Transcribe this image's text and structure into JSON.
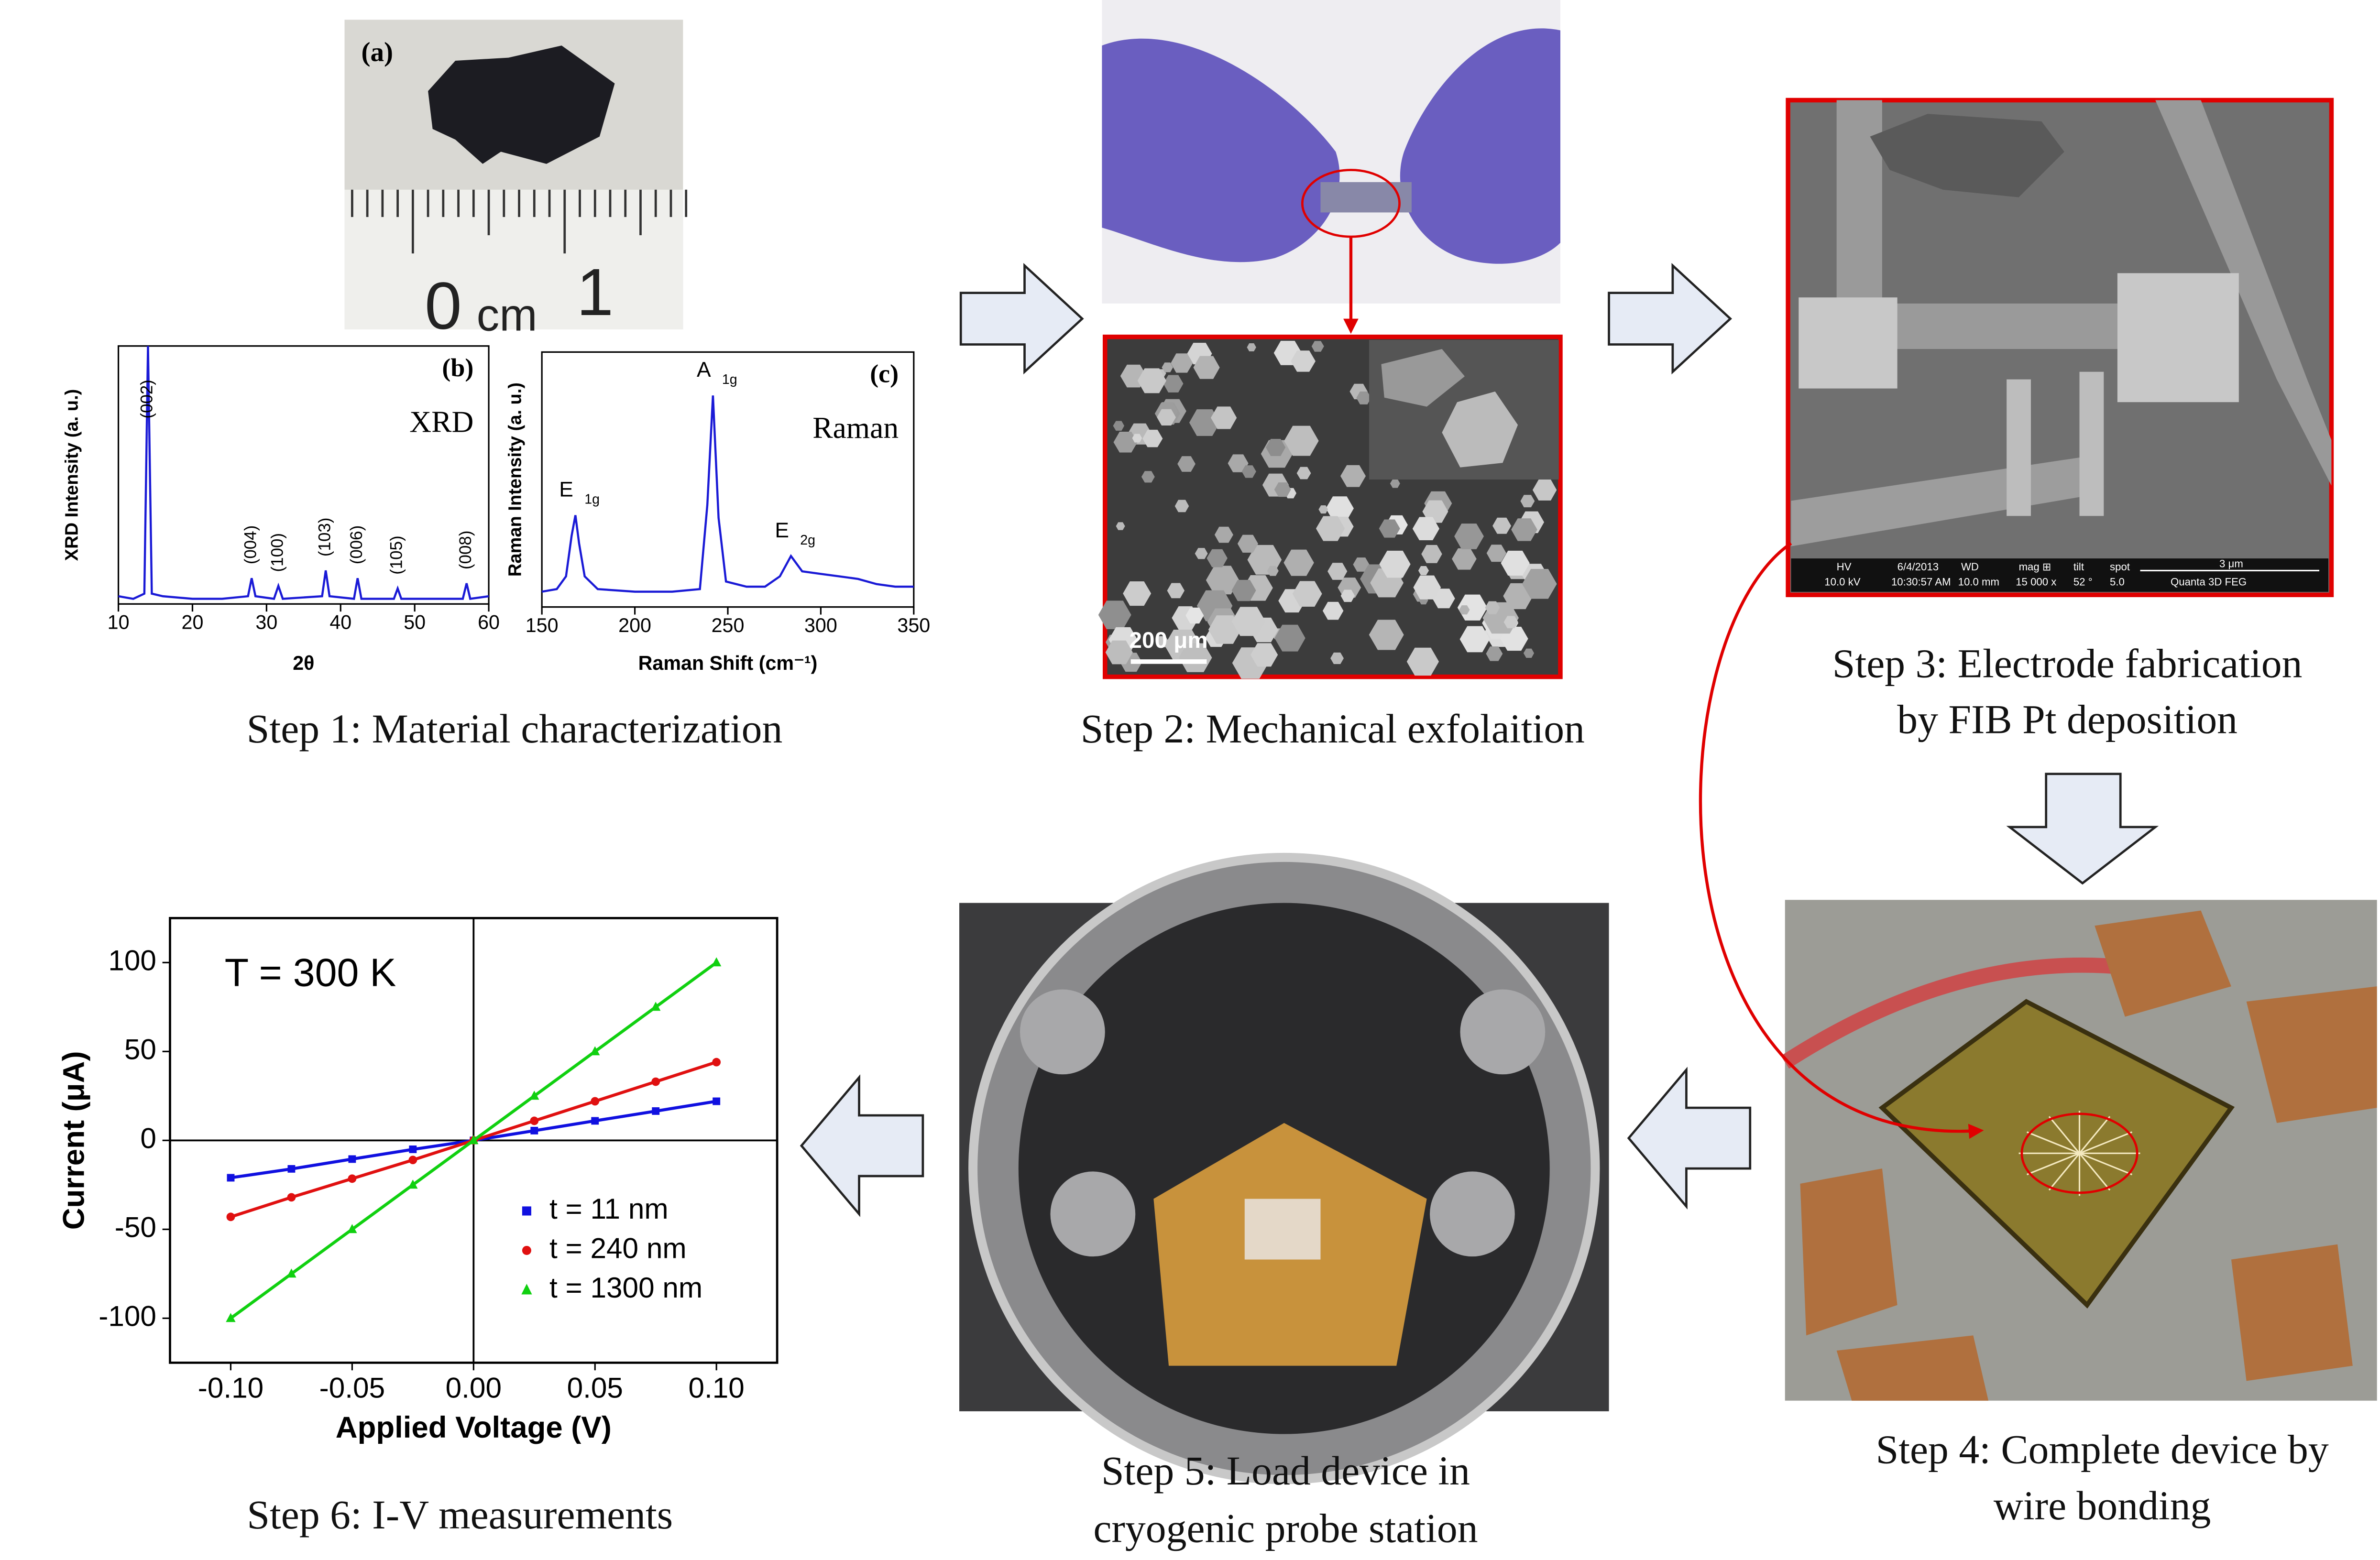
{
  "steps": [
    {
      "caption": [
        "Step 1: Material characterization"
      ]
    },
    {
      "caption": [
        "Step 2: Mechanical exfolaition"
      ]
    },
    {
      "caption": [
        "Step 3: Electrode fabrication",
        "by FIB Pt deposition"
      ]
    },
    {
      "caption": [
        "Step 4: Complete device by",
        "wire bonding"
      ]
    },
    {
      "caption": [
        "Step 5: Load device in",
        "cryogenic probe station"
      ]
    },
    {
      "caption": [
        "Step 6: I-V measurements"
      ]
    }
  ],
  "photo_a": {
    "label": "(a)",
    "ruler": [
      "0",
      "cm",
      "1"
    ]
  },
  "sem_exfoliation": {
    "scale_bar": "200 μm"
  },
  "sem_device": {
    "databar_top": [
      "HV",
      "6/4/2013",
      "WD",
      "mag ⊞",
      "tilt",
      "spot"
    ],
    "databar_bottom": [
      "10.0 kV",
      "10:30:57 AM",
      "10.0 mm",
      "15 000 x",
      "52 °",
      "5.0",
      "Quanta 3D FEG"
    ],
    "scale": "3 μm"
  },
  "chart_data": [
    {
      "type": "line",
      "panel_label": "(b)",
      "title": "XRD",
      "xlabel": "2θ",
      "ylabel": "XRD Intensity (a. u.)",
      "xlim": [
        10,
        60
      ],
      "xticks": [
        10,
        20,
        30,
        40,
        50,
        60
      ],
      "ylim": [
        0,
        100
      ],
      "x": [
        10,
        12,
        13.5,
        14,
        14.5,
        16,
        20,
        24,
        27.5,
        28,
        28.5,
        31,
        31.6,
        32.2,
        37.5,
        38,
        38.5,
        41.8,
        42.3,
        42.8,
        47.2,
        47.7,
        48.2,
        56.5,
        57,
        57.5,
        60
      ],
      "series": [
        {
          "color": "#1a1ad6",
          "values": [
            3,
            2,
            4,
            100,
            4,
            3,
            2,
            2,
            3,
            10,
            3,
            2,
            7,
            2,
            3,
            13,
            3,
            2,
            10,
            2,
            2,
            6,
            2,
            2,
            8,
            2,
            3
          ]
        }
      ],
      "peaks": [
        {
          "label": "(002)",
          "x": 14
        },
        {
          "label": "(004)",
          "x": 28
        },
        {
          "label": "(100)",
          "x": 31.6
        },
        {
          "label": "(103)",
          "x": 38
        },
        {
          "label": "(006)",
          "x": 42.3
        },
        {
          "label": "(105)",
          "x": 47.7
        },
        {
          "label": "(008)",
          "x": 57
        }
      ]
    },
    {
      "type": "line",
      "panel_label": "(c)",
      "title": "Raman",
      "xlabel": "Raman Shift (cm⁻¹)",
      "ylabel": "Raman Intensity (a. u.)",
      "xlim": [
        150,
        350
      ],
      "xticks": [
        150,
        200,
        250,
        300,
        350
      ],
      "ylim": [
        0,
        100
      ],
      "x": [
        150,
        158,
        163,
        166,
        168,
        170,
        173,
        180,
        200,
        220,
        235,
        239,
        242,
        245,
        249,
        260,
        270,
        278,
        284,
        290,
        300,
        310,
        320,
        330,
        340,
        350
      ],
      "series": [
        {
          "color": "#1a1ad6",
          "values": [
            6,
            7,
            12,
            28,
            36,
            25,
            12,
            7,
            6,
            6,
            7,
            40,
            83,
            35,
            10,
            8,
            8,
            12,
            20,
            14,
            13,
            12,
            11,
            9,
            8,
            8
          ]
        }
      ],
      "peaks": [
        {
          "label": "E",
          "sub": "1g",
          "x": 168
        },
        {
          "label": "A",
          "sub": "1g",
          "x": 242
        },
        {
          "label": "E",
          "sub": "2g",
          "x": 284
        }
      ]
    },
    {
      "type": "line",
      "annotation": "T = 300 K",
      "xlabel": "Applied Voltage (V)",
      "ylabel": "Current (μA)",
      "xlim": [
        -0.125,
        0.125
      ],
      "xticks": [
        {
          "value": -0.1,
          "label": "-0.10"
        },
        {
          "value": -0.05,
          "label": "-0.05"
        },
        {
          "value": 0,
          "label": "0.00"
        },
        {
          "value": 0.05,
          "label": "0.05"
        },
        {
          "value": 0.1,
          "label": "0.10"
        }
      ],
      "ylim": [
        -125,
        125
      ],
      "yticks": [
        -100,
        -50,
        0,
        50,
        100
      ],
      "legend": "lower right",
      "x": [
        -0.1,
        -0.075,
        -0.05,
        -0.025,
        0,
        0.025,
        0.05,
        0.075,
        0.1
      ],
      "series": [
        {
          "name": "t = 11 nm",
          "color": "#1010e0",
          "marker": "square",
          "values": [
            -21,
            -16,
            -10.5,
            -5,
            0,
            5.5,
            11,
            16.5,
            22
          ]
        },
        {
          "name": "t = 240 nm",
          "color": "#e01010",
          "marker": "circle",
          "values": [
            -43,
            -32,
            -21.5,
            -11,
            0,
            11,
            22,
            33,
            44
          ]
        },
        {
          "name": "t = 1300 nm",
          "color": "#10d010",
          "marker": "triangle",
          "values": [
            -100,
            -75,
            -50,
            -25,
            0,
            25,
            50,
            75,
            100
          ]
        }
      ]
    }
  ]
}
